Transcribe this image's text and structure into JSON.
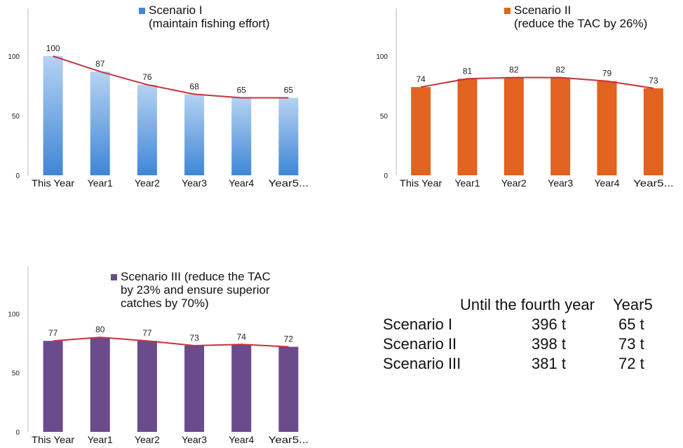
{
  "chart_data": [
    {
      "type": "bar",
      "id": "scenario1",
      "legend": [
        "Scenario  I",
        "(maintain fishing effort)"
      ],
      "color": "#4a8fd8",
      "gradient": [
        "#b6d2f2",
        "#3f86d6"
      ],
      "categories": [
        "This Year",
        "Year1",
        "Year2",
        "Year3",
        "Year4",
        "Year5..."
      ],
      "values": [
        100,
        87,
        76,
        68,
        65,
        65
      ],
      "trend_line": true,
      "trend_color": "#c8323a",
      "yticks": [
        0,
        50,
        100
      ],
      "ylim": [
        0,
        140
      ]
    },
    {
      "type": "bar",
      "id": "scenario2",
      "legend": [
        "Scenario  II",
        "(reduce the TAC by 26%)"
      ],
      "color": "#e2621f",
      "categories": [
        "This Year",
        "Year1",
        "Year2",
        "Year3",
        "Year4",
        "Year5..."
      ],
      "values": [
        74,
        81,
        82,
        82,
        79,
        73
      ],
      "trend_line": true,
      "trend_color": "#c8323a",
      "yticks": [
        0,
        50,
        100
      ],
      "ylim": [
        0,
        140
      ]
    },
    {
      "type": "bar",
      "id": "scenario3",
      "legend": [
        "Scenario III (reduce the TAC",
        "by 23% and ensure superior",
        "catches by 70%)"
      ],
      "color": "#6a4b8c",
      "categories": [
        "This Year",
        "Year1",
        "Year2",
        "Year3",
        "Year4",
        "Year5..."
      ],
      "values": [
        77,
        80,
        77,
        73,
        74,
        72
      ],
      "trend_line": true,
      "trend_color": "#c8323a",
      "yticks": [
        0,
        50,
        100
      ],
      "ylim": [
        0,
        140
      ]
    }
  ],
  "summary": {
    "headers": [
      "Until the fourth year",
      "Year5"
    ],
    "rows": [
      {
        "label": "Scenario I",
        "total": "396 t",
        "year5": "65 t"
      },
      {
        "label": "Scenario II",
        "total": "398 t",
        "year5": "73 t"
      },
      {
        "label": "Scenario III",
        "total": "381 t",
        "year5": "72 t"
      }
    ]
  }
}
